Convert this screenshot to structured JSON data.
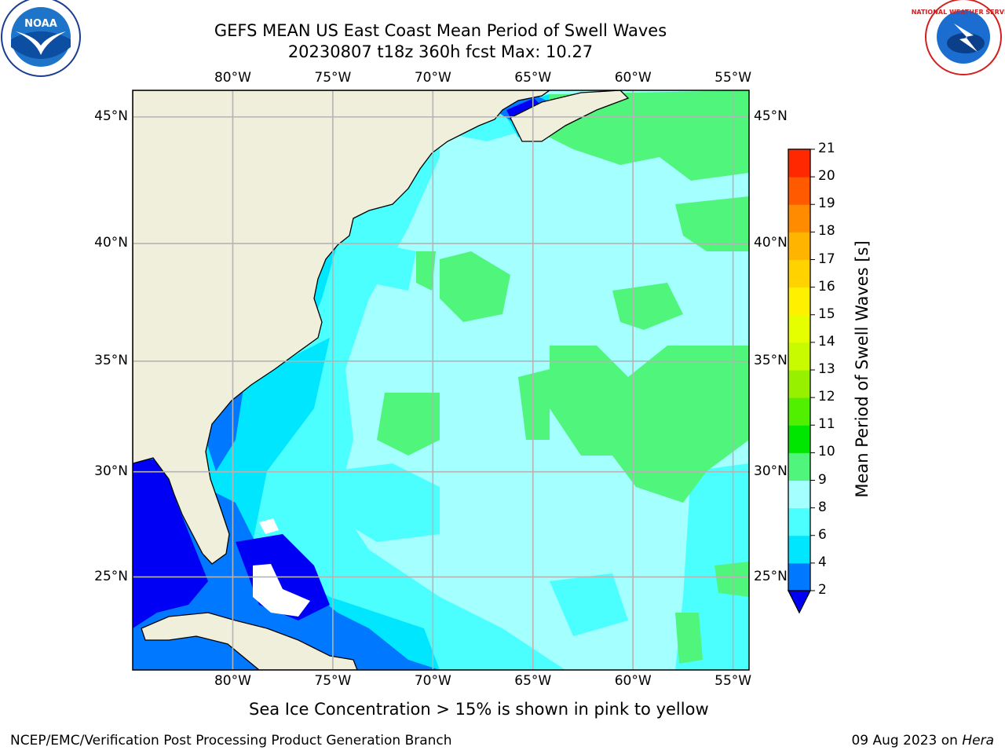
{
  "header": {
    "title_line1": "GEFS MEAN US East Coast Mean Period of Swell Waves",
    "title_line2": "20230807 t18z 360h fcst   Max: 10.27"
  },
  "logos": {
    "left": {
      "name": "noaa-logo",
      "text": "NOAA"
    },
    "right": {
      "name": "nws-logo",
      "text": "NATIONAL WEATHER SERVICE"
    }
  },
  "map": {
    "lon_ticks": [
      "80°W",
      "75°W",
      "70°W",
      "65°W",
      "60°W",
      "55°W"
    ],
    "lat_ticks": [
      "45°N",
      "40°N",
      "35°N",
      "30°N",
      "25°N"
    ],
    "lon_values": [
      -80,
      -75,
      -70,
      -65,
      -60,
      -55
    ],
    "lat_values": [
      45,
      40,
      35,
      30,
      25
    ],
    "lon_range": [
      -85,
      -54.2
    ],
    "lat_range": [
      20.4,
      46
    ],
    "colors": {
      "land": "#efefdc",
      "grid": "#b4b4b4",
      "band_2_4": "#0078ff",
      "band_4_6": "#00e6ff",
      "band_6_8": "#4cffff",
      "band_8_9": "#a4ffff",
      "band_9_10": "#50f57c",
      "below_2": "#0000f5"
    }
  },
  "colorbar": {
    "label": "Mean Period of Swell Waves [s]",
    "levels": [
      "2",
      "4",
      "6",
      "8",
      "9",
      "10",
      "11",
      "12",
      "13",
      "14",
      "15",
      "16",
      "17",
      "18",
      "19",
      "20",
      "21"
    ],
    "colors": [
      "#0078ff",
      "#00e6ff",
      "#4cffff",
      "#a4ffff",
      "#50f57c",
      "#00e600",
      "#50f000",
      "#96f000",
      "#c8fa00",
      "#e6ff00",
      "#fff000",
      "#ffd200",
      "#ffb400",
      "#ff8c00",
      "#ff5a00",
      "#ff2800",
      "#ff0000"
    ],
    "extend_color": "#0000f5"
  },
  "notes": {
    "sea_ice": "Sea Ice Concentration > 15% is shown in pink to yellow"
  },
  "footer": {
    "left": "NCEP/EMC/Verification Post Processing Product Generation Branch",
    "right_date": "09 Aug 2023 on ",
    "right_host": "Hera"
  }
}
